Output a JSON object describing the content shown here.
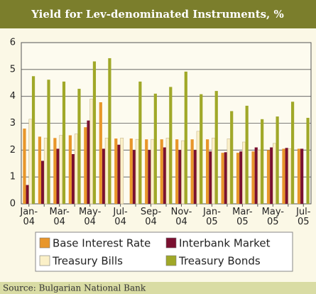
{
  "chart_data": {
    "type": "bar",
    "title": "Yield for Lev-denominated Instruments, %",
    "source": "Source: Bulgarian National Bank",
    "categories": [
      "Jan-04",
      null,
      "Mar-04",
      null,
      "May-04",
      null,
      "Jul-04",
      null,
      "Sep-04",
      null,
      "Nov-04",
      null,
      "Jan-05",
      null,
      "Mar-05",
      null,
      "May-05",
      null,
      "Jul-05"
    ],
    "series": [
      {
        "name": "Base Interest Rate",
        "color": "#e8962a",
        "values": [
          2.8,
          2.5,
          2.45,
          2.55,
          2.85,
          3.78,
          2.43,
          2.43,
          2.4,
          2.4,
          2.4,
          2.4,
          2.4,
          1.9,
          1.9,
          1.95,
          2.0,
          2.05,
          2.05
        ]
      },
      {
        "name": "Interbank Market",
        "color": "#7a1030",
        "values": [
          0.7,
          1.6,
          2.05,
          1.85,
          3.1,
          2.05,
          2.2,
          2.0,
          2.0,
          2.1,
          2.0,
          2.0,
          1.95,
          1.92,
          1.95,
          2.1,
          2.1,
          2.08,
          2.05
        ]
      },
      {
        "name": "Treasury Bills",
        "color": "#fbf0c8",
        "values": [
          3.15,
          2.45,
          2.55,
          2.6,
          3.9,
          2.45,
          2.45,
          2.4,
          2.4,
          2.45,
          2.35,
          2.7,
          2.45,
          2.42,
          2.3,
          2.0,
          2.25,
          2.05,
          null
        ]
      },
      {
        "name": "Treasury Bonds",
        "color": "#a0a828",
        "values": [
          4.75,
          4.62,
          4.55,
          4.28,
          5.3,
          5.42,
          null,
          4.55,
          4.1,
          4.35,
          4.92,
          4.08,
          4.2,
          3.45,
          3.65,
          3.15,
          3.25,
          3.8,
          3.2
        ]
      }
    ],
    "ylim": [
      0,
      6
    ],
    "yticks": [
      0,
      1,
      2,
      3,
      4,
      5,
      6
    ],
    "grid": true
  }
}
